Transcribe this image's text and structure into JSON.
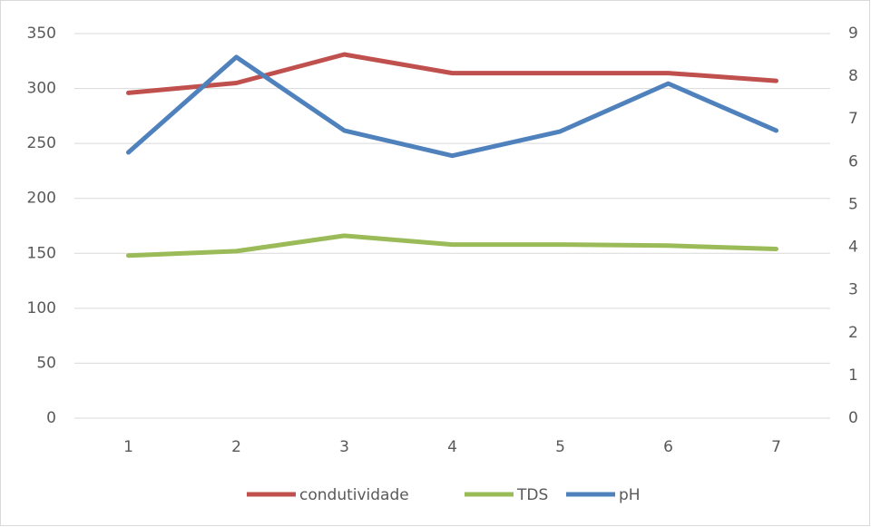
{
  "chart_data": {
    "type": "line",
    "categories": [
      "1",
      "2",
      "3",
      "4",
      "5",
      "6",
      "7"
    ],
    "series": [
      {
        "name": "condutividade",
        "color": "#c0504d",
        "values": [
          296,
          305,
          331,
          314,
          314,
          314,
          307
        ]
      },
      {
        "name": "TDS",
        "color": "#9bbb59",
        "values": [
          148,
          152,
          166,
          158,
          158,
          157,
          154
        ]
      },
      {
        "name": "pH",
        "color": "#4f81bd",
        "axis": "y2",
        "values": [
          6.22,
          8.45,
          6.73,
          6.14,
          6.71,
          7.83,
          6.73
        ]
      }
    ],
    "ylim": [
      0,
      350
    ],
    "yticks": [
      0,
      50,
      100,
      150,
      200,
      250,
      300,
      350
    ],
    "y2lim": [
      0,
      9
    ],
    "y2ticks": [
      0,
      1,
      2,
      3,
      4,
      5,
      6,
      7,
      8,
      9
    ],
    "grid": true,
    "legend": "bottom"
  }
}
